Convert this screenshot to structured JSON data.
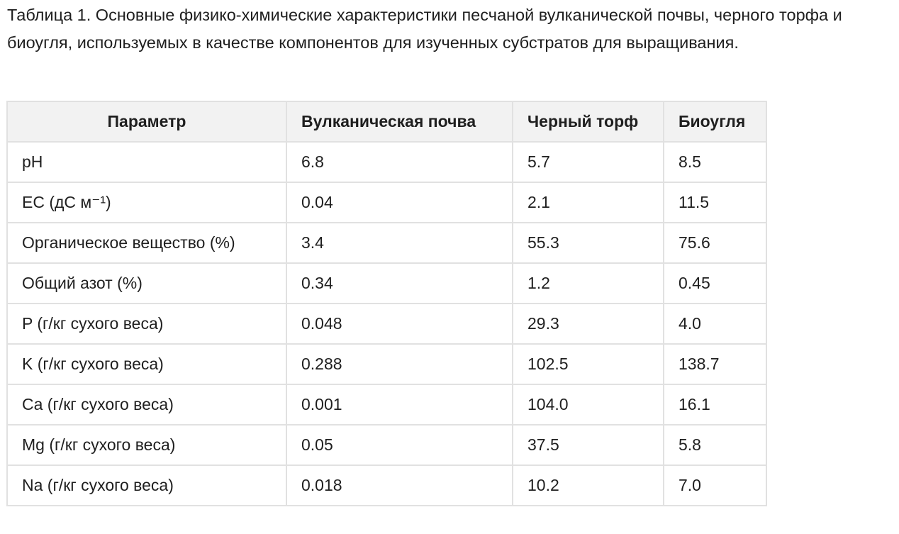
{
  "caption": "Таблица 1. Основные физико-химические характеристики песчаной вулканической почвы, черного торфа и биоугля, используемых в качестве компонентов для изученных субстратов для выращивания.",
  "table": {
    "headers": [
      "Параметр",
      "Вулканическая почва",
      "Черный торф",
      "Биоугля"
    ],
    "rows": [
      [
        "pH",
        "6.8",
        "5.7",
        "8.5"
      ],
      [
        "EC (дС м⁻¹)",
        "0.04",
        "2.1",
        "11.5"
      ],
      [
        "Органическое вещество (%)",
        "3.4",
        "55.3",
        "75.6"
      ],
      [
        "Общий азот (%)",
        "0.34",
        "1.2",
        "0.45"
      ],
      [
        "P (г/кг сухого веса)",
        "0.048",
        "29.3",
        "4.0"
      ],
      [
        "K (г/кг сухого веса)",
        "0.288",
        "102.5",
        "138.7"
      ],
      [
        "Ca (г/кг сухого веса)",
        "0.001",
        "104.0",
        "16.1"
      ],
      [
        "Mg (г/кг сухого веса)",
        "0.05",
        "37.5",
        "5.8"
      ],
      [
        "Na (г/кг сухого веса)",
        "0.018",
        "10.2",
        "7.0"
      ]
    ]
  }
}
